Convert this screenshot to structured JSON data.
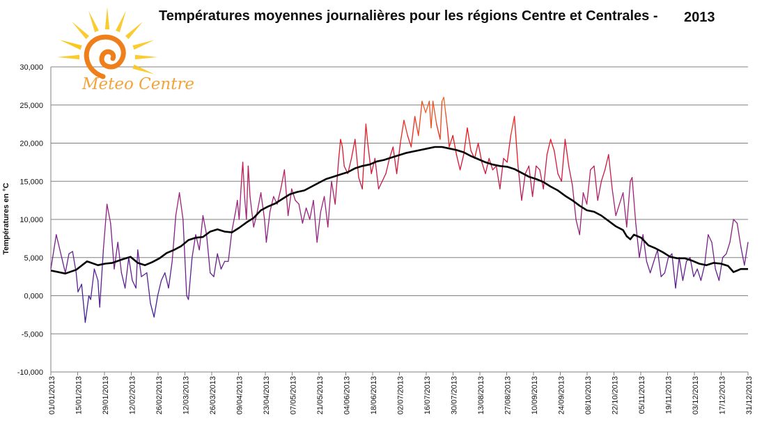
{
  "title": "Températures moyennes journalières pour les régions Centre et Centrales -",
  "title_year": "2013",
  "logo": {
    "text": "Meteo Centre",
    "icon": "sun-icon",
    "colors": {
      "rays": "#f9c61b",
      "spiral": "#ef7f1a",
      "text": "#f2a43a"
    }
  },
  "colors": {
    "cold": "#3b1f9a",
    "mid": "#a0207a",
    "hot": "#e8131b",
    "hottest": "#f07020",
    "average": "#000000",
    "grid": "#808080"
  },
  "chart_data": {
    "type": "line",
    "title": "Températures moyennes journalières pour les régions Centre et Centrales - 2013",
    "ylabel": "Températures en °C",
    "xlabel": "",
    "ylim": [
      -10,
      30
    ],
    "yticks": [
      "30,000",
      "25,000",
      "20,000",
      "15,000",
      "10,000",
      "5,000",
      "0,000",
      "-5,000",
      "-10,000"
    ],
    "xticks": [
      "01/01/2013",
      "15/01/2013",
      "29/01/2013",
      "12/02/2013",
      "26/02/2013",
      "12/03/2013",
      "26/03/2013",
      "09/04/2013",
      "23/04/2013",
      "07/05/2013",
      "21/05/2013",
      "04/06/2013",
      "18/06/2013",
      "02/07/2013",
      "16/07/2013",
      "30/07/2013",
      "13/08/2013",
      "27/08/2013",
      "10/09/2013",
      "24/09/2013",
      "08/10/2013",
      "22/10/2013",
      "05/11/2013",
      "19/11/2013",
      "03/12/2013",
      "17/12/2013",
      "31/12/2013"
    ],
    "grid": true,
    "series": [
      {
        "role": "daily",
        "anchors": [
          [
            0,
            3.5
          ],
          [
            3,
            8
          ],
          [
            6,
            5
          ],
          [
            8,
            3
          ],
          [
            10,
            5.5
          ],
          [
            12,
            5.8
          ],
          [
            14,
            3
          ],
          [
            15,
            0.5
          ],
          [
            17,
            1.5
          ],
          [
            19,
            -3.5
          ],
          [
            21,
            0
          ],
          [
            22,
            -0.5
          ],
          [
            24,
            3.5
          ],
          [
            26,
            2
          ],
          [
            27,
            -1.5
          ],
          [
            29,
            6
          ],
          [
            31,
            12
          ],
          [
            33,
            9.5
          ],
          [
            35,
            3.5
          ],
          [
            37,
            7
          ],
          [
            39,
            3
          ],
          [
            41,
            1
          ],
          [
            43,
            5
          ],
          [
            45,
            2
          ],
          [
            47,
            1
          ],
          [
            48,
            6
          ],
          [
            50,
            2.5
          ],
          [
            53,
            3
          ],
          [
            55,
            -1
          ],
          [
            57,
            -2.8
          ],
          [
            59,
            0
          ],
          [
            61,
            2
          ],
          [
            63,
            3
          ],
          [
            65,
            1
          ],
          [
            67,
            4.5
          ],
          [
            69,
            10.5
          ],
          [
            71,
            13.5
          ],
          [
            73,
            10
          ],
          [
            75,
            0
          ],
          [
            76,
            -0.5
          ],
          [
            78,
            5
          ],
          [
            80,
            8
          ],
          [
            82,
            6
          ],
          [
            84,
            10.5
          ],
          [
            86,
            8
          ],
          [
            88,
            3
          ],
          [
            90,
            2.5
          ],
          [
            92,
            5.5
          ],
          [
            94,
            3.5
          ],
          [
            96,
            4.5
          ],
          [
            98,
            4.5
          ],
          [
            100,
            8.5
          ],
          [
            102,
            11
          ],
          [
            103,
            12.5
          ],
          [
            104,
            10
          ],
          [
            105,
            14
          ],
          [
            106,
            17.5
          ],
          [
            107,
            13
          ],
          [
            108,
            10
          ],
          [
            109,
            17
          ],
          [
            110,
            13
          ],
          [
            112,
            9
          ],
          [
            114,
            11
          ],
          [
            116,
            13.5
          ],
          [
            118,
            10
          ],
          [
            119,
            7
          ],
          [
            121,
            11
          ],
          [
            123,
            13
          ],
          [
            125,
            12
          ],
          [
            127,
            14
          ],
          [
            129,
            16.5
          ],
          [
            131,
            10.5
          ],
          [
            133,
            14
          ],
          [
            135,
            12.5
          ],
          [
            137,
            12
          ],
          [
            139,
            9.5
          ],
          [
            141,
            11.5
          ],
          [
            143,
            10
          ],
          [
            145,
            12.5
          ],
          [
            147,
            7
          ],
          [
            149,
            11
          ],
          [
            151,
            13
          ],
          [
            153,
            9
          ],
          [
            155,
            15
          ],
          [
            157,
            12
          ],
          [
            159,
            18
          ],
          [
            160,
            20.5
          ],
          [
            161,
            19.5
          ],
          [
            162,
            17
          ],
          [
            164,
            16
          ],
          [
            166,
            18
          ],
          [
            168,
            20.5
          ],
          [
            170,
            15.5
          ],
          [
            172,
            14
          ],
          [
            174,
            22.5
          ],
          [
            175,
            20
          ],
          [
            177,
            16
          ],
          [
            179,
            18
          ],
          [
            181,
            14
          ],
          [
            183,
            15
          ],
          [
            185,
            16
          ],
          [
            187,
            18
          ],
          [
            189,
            19.5
          ],
          [
            191,
            16
          ],
          [
            193,
            20
          ],
          [
            195,
            23
          ],
          [
            197,
            21
          ],
          [
            199,
            19.5
          ],
          [
            201,
            23.5
          ],
          [
            203,
            21
          ],
          [
            205,
            25.5
          ],
          [
            207,
            24
          ],
          [
            209,
            25.5
          ],
          [
            210,
            22
          ],
          [
            211,
            25.5
          ],
          [
            213,
            22.5
          ],
          [
            215,
            20.5
          ],
          [
            216,
            25.5
          ],
          [
            217,
            26
          ],
          [
            218,
            24
          ],
          [
            219,
            22
          ],
          [
            220,
            19.5
          ],
          [
            222,
            21
          ],
          [
            224,
            18.5
          ],
          [
            226,
            16.5
          ],
          [
            228,
            18.5
          ],
          [
            230,
            22
          ],
          [
            232,
            19
          ],
          [
            234,
            18
          ],
          [
            236,
            20
          ],
          [
            238,
            17.5
          ],
          [
            240,
            16
          ],
          [
            242,
            18
          ],
          [
            244,
            16.5
          ],
          [
            246,
            17
          ],
          [
            248,
            14
          ],
          [
            250,
            18
          ],
          [
            252,
            17.5
          ],
          [
            254,
            21
          ],
          [
            256,
            23.5
          ],
          [
            258,
            17
          ],
          [
            260,
            12.5
          ],
          [
            262,
            16
          ],
          [
            264,
            17
          ],
          [
            266,
            13
          ],
          [
            268,
            17
          ],
          [
            270,
            16.5
          ],
          [
            272,
            14
          ],
          [
            274,
            18.5
          ],
          [
            276,
            20.5
          ],
          [
            278,
            19
          ],
          [
            280,
            16
          ],
          [
            282,
            15
          ],
          [
            284,
            20.5
          ],
          [
            286,
            17
          ],
          [
            288,
            14.5
          ],
          [
            290,
            10
          ],
          [
            292,
            8
          ],
          [
            294,
            13.5
          ],
          [
            296,
            12
          ],
          [
            298,
            16.5
          ],
          [
            300,
            17
          ],
          [
            302,
            12.5
          ],
          [
            304,
            15
          ],
          [
            306,
            16.5
          ],
          [
            308,
            18.5
          ],
          [
            310,
            14
          ],
          [
            312,
            10.5
          ],
          [
            314,
            12
          ],
          [
            316,
            13.5
          ],
          [
            318,
            9
          ],
          [
            320,
            15
          ],
          [
            321,
            15.5
          ],
          [
            323,
            9.5
          ],
          [
            325,
            5
          ],
          [
            327,
            8
          ],
          [
            329,
            4.5
          ],
          [
            331,
            3
          ],
          [
            333,
            4.5
          ],
          [
            335,
            6
          ],
          [
            337,
            2.5
          ],
          [
            339,
            3
          ],
          [
            341,
            5
          ],
          [
            343,
            5.5
          ],
          [
            345,
            1
          ],
          [
            347,
            5
          ],
          [
            349,
            2
          ],
          [
            351,
            4.5
          ],
          [
            353,
            5
          ],
          [
            355,
            2.5
          ],
          [
            357,
            3.5
          ],
          [
            359,
            2
          ],
          [
            361,
            4
          ],
          [
            363,
            8
          ],
          [
            365,
            7
          ],
          [
            367,
            3.5
          ],
          [
            369,
            2
          ],
          [
            371,
            5
          ],
          [
            373,
            5.5
          ],
          [
            375,
            7
          ],
          [
            377,
            10
          ],
          [
            379,
            9.5
          ],
          [
            381,
            6.5
          ],
          [
            383,
            4
          ],
          [
            385,
            7
          ]
        ],
        "n_days": 365
      },
      {
        "role": "average",
        "anchors": [
          [
            0,
            3.3
          ],
          [
            8,
            2.9
          ],
          [
            14,
            3.4
          ],
          [
            20,
            4.5
          ],
          [
            26,
            4
          ],
          [
            30,
            4.2
          ],
          [
            34,
            4.3
          ],
          [
            40,
            4.8
          ],
          [
            44,
            5.1
          ],
          [
            48,
            4.3
          ],
          [
            52,
            4
          ],
          [
            56,
            4.4
          ],
          [
            60,
            4.9
          ],
          [
            64,
            5.6
          ],
          [
            68,
            6
          ],
          [
            72,
            6.5
          ],
          [
            76,
            7.3
          ],
          [
            80,
            7.6
          ],
          [
            84,
            7.7
          ],
          [
            88,
            8.4
          ],
          [
            92,
            8.7
          ],
          [
            96,
            8.4
          ],
          [
            100,
            8.3
          ],
          [
            104,
            8.9
          ],
          [
            108,
            9.6
          ],
          [
            112,
            10.2
          ],
          [
            116,
            11.2
          ],
          [
            120,
            11.7
          ],
          [
            124,
            12.1
          ],
          [
            128,
            12.7
          ],
          [
            132,
            13.3
          ],
          [
            136,
            13.6
          ],
          [
            140,
            13.8
          ],
          [
            144,
            14.3
          ],
          [
            148,
            14.8
          ],
          [
            152,
            15.3
          ],
          [
            156,
            15.6
          ],
          [
            160,
            15.9
          ],
          [
            164,
            16.2
          ],
          [
            168,
            16.7
          ],
          [
            172,
            17
          ],
          [
            176,
            17.2
          ],
          [
            180,
            17.6
          ],
          [
            184,
            17.8
          ],
          [
            188,
            18.1
          ],
          [
            192,
            18.4
          ],
          [
            196,
            18.7
          ],
          [
            200,
            18.9
          ],
          [
            204,
            19.1
          ],
          [
            208,
            19.3
          ],
          [
            212,
            19.5
          ],
          [
            216,
            19.5
          ],
          [
            220,
            19.3
          ],
          [
            224,
            19.1
          ],
          [
            228,
            18.8
          ],
          [
            232,
            18.3
          ],
          [
            236,
            17.9
          ],
          [
            240,
            17.5
          ],
          [
            244,
            17.2
          ],
          [
            248,
            17
          ],
          [
            252,
            16.9
          ],
          [
            256,
            16.6
          ],
          [
            260,
            16.1
          ],
          [
            264,
            15.6
          ],
          [
            268,
            15.3
          ],
          [
            272,
            14.9
          ],
          [
            276,
            14.3
          ],
          [
            280,
            13.8
          ],
          [
            284,
            13.1
          ],
          [
            288,
            12.5
          ],
          [
            292,
            11.8
          ],
          [
            296,
            11.2
          ],
          [
            300,
            11
          ],
          [
            304,
            10.5
          ],
          [
            308,
            9.8
          ],
          [
            312,
            9.1
          ],
          [
            316,
            8.6
          ],
          [
            318,
            7.8
          ],
          [
            320,
            7.4
          ],
          [
            322,
            8
          ],
          [
            326,
            7.6
          ],
          [
            330,
            6.6
          ],
          [
            334,
            6.2
          ],
          [
            338,
            5.7
          ],
          [
            342,
            5.1
          ],
          [
            346,
            4.9
          ],
          [
            350,
            4.9
          ],
          [
            354,
            4.6
          ],
          [
            358,
            4.2
          ],
          [
            362,
            4
          ],
          [
            366,
            4.3
          ],
          [
            370,
            4.2
          ],
          [
            374,
            3.9
          ],
          [
            377,
            3.1
          ],
          [
            379,
            3.3
          ],
          [
            381,
            3.5
          ],
          [
            385,
            3.5
          ]
        ],
        "n_days": 365
      }
    ]
  }
}
